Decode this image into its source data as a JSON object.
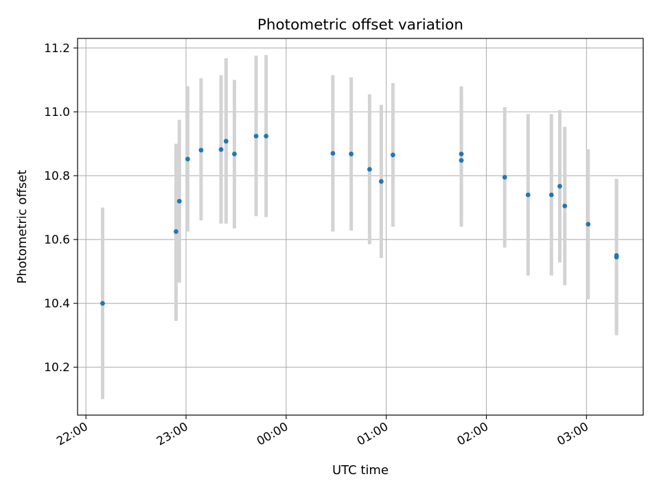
{
  "chart_data": {
    "type": "scatter",
    "title": "Photometric offset variation",
    "xlabel": "UTC time",
    "ylabel": "Photometric offset",
    "x_axis": "time",
    "xlim": [
      "21:55",
      "03:34"
    ],
    "ylim": [
      10.05,
      11.23
    ],
    "x_ticks": [
      "22:00",
      "23:00",
      "00:00",
      "01:00",
      "02:00",
      "03:00"
    ],
    "y_ticks": [
      10.2,
      10.4,
      10.6,
      10.8,
      11.0,
      11.2
    ],
    "y_tick_labels": [
      "10.2",
      "10.4",
      "10.6",
      "10.8",
      "11.0",
      "11.2"
    ],
    "grid": true,
    "legend": "none",
    "point_color": "#1f77b4",
    "error_bar_color": "#d3d3d3",
    "series": [
      {
        "points": [
          {
            "time": "22:10",
            "y": 10.4,
            "low": 10.1,
            "high": 10.7
          },
          {
            "time": "22:54",
            "y": 10.625,
            "low": 10.345,
            "high": 10.9
          },
          {
            "time": "22:56",
            "y": 10.72,
            "low": 10.465,
            "high": 10.975
          },
          {
            "time": "23:01",
            "y": 10.852,
            "low": 10.625,
            "high": 11.08
          },
          {
            "time": "23:09",
            "y": 10.88,
            "low": 10.66,
            "high": 11.105
          },
          {
            "time": "23:21",
            "y": 10.882,
            "low": 10.65,
            "high": 11.115
          },
          {
            "time": "23:24",
            "y": 10.908,
            "low": 10.65,
            "high": 11.168
          },
          {
            "time": "23:29",
            "y": 10.868,
            "low": 10.635,
            "high": 11.1
          },
          {
            "time": "23:42",
            "y": 10.924,
            "low": 10.673,
            "high": 11.176
          },
          {
            "time": "23:48",
            "y": 10.924,
            "low": 10.67,
            "high": 11.178
          },
          {
            "time": "00:28",
            "y": 10.87,
            "low": 10.625,
            "high": 11.115
          },
          {
            "time": "00:39",
            "y": 10.868,
            "low": 10.628,
            "high": 11.108
          },
          {
            "time": "00:50",
            "y": 10.82,
            "low": 10.585,
            "high": 11.055
          },
          {
            "time": "00:57",
            "y": 10.782,
            "low": 10.542,
            "high": 11.022
          },
          {
            "time": "01:04",
            "y": 10.865,
            "low": 10.64,
            "high": 11.09
          },
          {
            "time": "01:45",
            "y": 10.868,
            "low": 10.655,
            "high": 11.08
          },
          {
            "time": "01:45",
            "y": 10.848,
            "low": 10.64,
            "high": 11.056
          },
          {
            "time": "02:11",
            "y": 10.795,
            "low": 10.575,
            "high": 11.015
          },
          {
            "time": "02:25",
            "y": 10.74,
            "low": 10.487,
            "high": 10.993
          },
          {
            "time": "02:39",
            "y": 10.74,
            "low": 10.487,
            "high": 10.993
          },
          {
            "time": "02:44",
            "y": 10.767,
            "low": 10.528,
            "high": 11.006
          },
          {
            "time": "02:47",
            "y": 10.705,
            "low": 10.457,
            "high": 10.953
          },
          {
            "time": "03:01",
            "y": 10.648,
            "low": 10.413,
            "high": 10.883
          },
          {
            "time": "03:18",
            "y": 10.55,
            "low": 10.31,
            "high": 10.79
          },
          {
            "time": "03:18",
            "y": 10.545,
            "low": 10.3,
            "high": 10.79
          }
        ]
      }
    ]
  }
}
